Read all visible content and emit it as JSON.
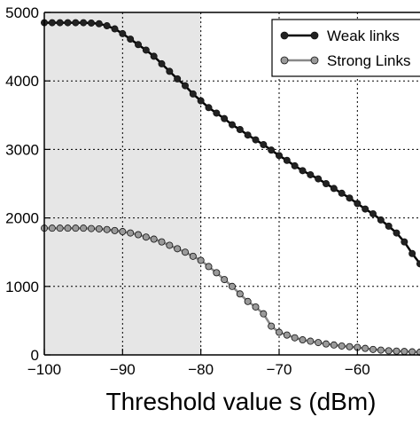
{
  "chart_data": {
    "type": "line",
    "title": "",
    "xlabel": "Threshold value s  (dBm)",
    "ylabel": "",
    "xlim": [
      -100,
      -52
    ],
    "ylim": [
      0,
      5000
    ],
    "xticks": [
      -100,
      -90,
      -80,
      -70,
      -60
    ],
    "yticks": [
      0,
      1000,
      2000,
      3000,
      4000,
      5000
    ],
    "xtick_labels": [
      "−100",
      "−90",
      "−80",
      "−70",
      "−60"
    ],
    "ytick_labels": [
      "0",
      "1000",
      "2000",
      "3000",
      "4000",
      "5000"
    ],
    "grid": true,
    "shaded_region": {
      "x_from": -100,
      "x_to": -80,
      "color": "#e6e6e6"
    },
    "legend": {
      "position": "top-right"
    },
    "series": [
      {
        "name": "Weak links",
        "color": "#000000",
        "marker_fill": "#222222",
        "x": [
          -100,
          -99,
          -98,
          -97,
          -96,
          -95,
          -94,
          -93,
          -92,
          -91,
          -90,
          -89,
          -88,
          -87,
          -86,
          -85,
          -84,
          -83,
          -82,
          -81,
          -80,
          -79,
          -78,
          -77,
          -76,
          -75,
          -74,
          -73,
          -72,
          -71,
          -70,
          -69,
          -68,
          -67,
          -66,
          -65,
          -64,
          -63,
          -62,
          -61,
          -60,
          -59,
          -58,
          -57,
          -56,
          -55,
          -54,
          -53,
          -52
        ],
        "values": [
          4850,
          4850,
          4850,
          4850,
          4850,
          4850,
          4845,
          4835,
          4805,
          4760,
          4690,
          4610,
          4530,
          4450,
          4360,
          4250,
          4140,
          4030,
          3930,
          3810,
          3710,
          3610,
          3530,
          3450,
          3360,
          3290,
          3210,
          3140,
          3070,
          2990,
          2910,
          2840,
          2760,
          2690,
          2630,
          2570,
          2500,
          2430,
          2360,
          2290,
          2210,
          2130,
          2060,
          1970,
          1880,
          1780,
          1650,
          1480,
          1330
        ]
      },
      {
        "name": "Strong Links",
        "color": "#888888",
        "marker_fill": "#9a9a9a",
        "x": [
          -100,
          -99,
          -98,
          -97,
          -96,
          -95,
          -94,
          -93,
          -92,
          -91,
          -90,
          -89,
          -88,
          -87,
          -86,
          -85,
          -84,
          -83,
          -82,
          -81,
          -80,
          -79,
          -78,
          -77,
          -76,
          -75,
          -74,
          -73,
          -72,
          -71,
          -70,
          -69,
          -68,
          -67,
          -66,
          -65,
          -64,
          -63,
          -62,
          -61,
          -60,
          -59,
          -58,
          -57,
          -56,
          -55,
          -54,
          -53,
          -52
        ],
        "values": [
          1850,
          1850,
          1850,
          1850,
          1850,
          1850,
          1845,
          1840,
          1830,
          1815,
          1800,
          1780,
          1755,
          1720,
          1690,
          1650,
          1600,
          1550,
          1500,
          1440,
          1380,
          1290,
          1200,
          1100,
          1000,
          890,
          780,
          700,
          600,
          420,
          330,
          290,
          250,
          220,
          200,
          180,
          160,
          145,
          130,
          120,
          110,
          95,
          80,
          70,
          60,
          55,
          50,
          45,
          40
        ]
      }
    ]
  }
}
